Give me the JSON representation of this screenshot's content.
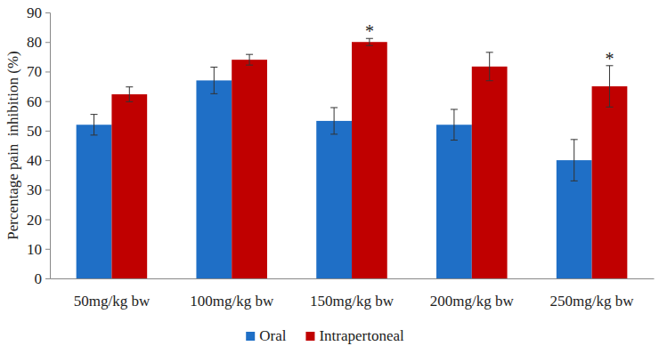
{
  "chart_data": {
    "type": "bar",
    "y_label": "Percentage pain  inhibition (%)",
    "categories": [
      "50mg/kg bw",
      "100mg/kg bw",
      "150mg/kg bw",
      "200mg/kg bw",
      "250mg/kg bw"
    ],
    "series": [
      {
        "name": "Oral",
        "color": "#1f6fc6",
        "values": [
          52,
          67,
          53.3,
          52,
          40
        ],
        "errors": [
          3.5,
          4.5,
          4.5,
          5.2,
          7
        ]
      },
      {
        "name": "Intrapertoneal",
        "color": "#c00000",
        "values": [
          62.3,
          74,
          80,
          71.7,
          65
        ],
        "errors": [
          2.5,
          1.8,
          1.2,
          4.8,
          7
        ]
      }
    ],
    "annotations": [
      {
        "text": "*",
        "series": "Intrapertoneal",
        "category": "150mg/kg bw"
      },
      {
        "text": "*",
        "series": "Intrapertoneal",
        "category": "250mg/kg bw"
      }
    ],
    "ylim": [
      0,
      90
    ],
    "yticks": [
      0,
      10,
      20,
      30,
      40,
      50,
      60,
      70,
      80,
      90
    ],
    "grid": false,
    "legend": "bottom"
  }
}
